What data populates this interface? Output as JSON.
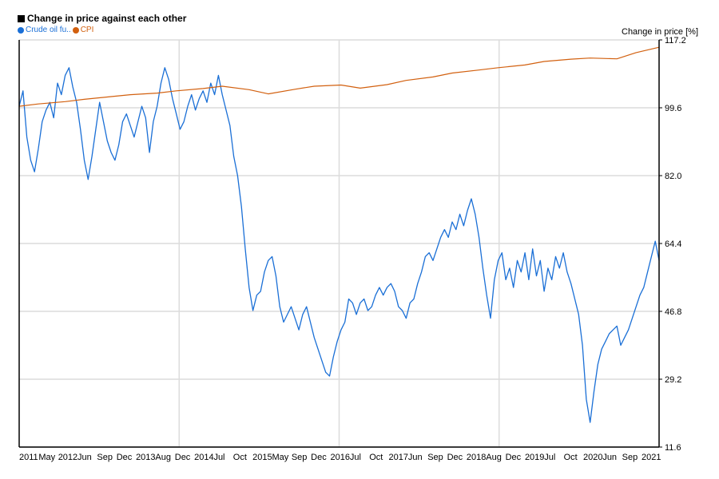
{
  "chart_data": {
    "type": "line",
    "title": "Change in price against each other",
    "ylabel": "Change in price [%]",
    "ylim": [
      11.6,
      117.2
    ],
    "yticks": [
      "117.2",
      "99.6",
      "82.0",
      "64.4",
      "46.8",
      "29.2",
      "11.6"
    ],
    "xticks": [
      "2011",
      "May",
      "2012",
      "Jun",
      "Sep",
      "Dec",
      "2013",
      "Aug",
      "Dec",
      "2014",
      "Jul",
      "Oct",
      "2015",
      "May",
      "Sep",
      "Dec",
      "2016",
      "Jul",
      "Oct",
      "2017",
      "Jun",
      "Sep",
      "Dec",
      "2018",
      "Aug",
      "Dec",
      "2019",
      "Jul",
      "Oct",
      "2020",
      "Jun",
      "Sep",
      "2021"
    ],
    "x_start": "2011-01",
    "x_end": "2021-07",
    "grid": true,
    "legend_position": "top-left",
    "series": [
      {
        "name": "Crude oil fu..",
        "color": "#1a6fd6",
        "points": [
          [
            "2011-01",
            100
          ],
          [
            "2011-02",
            104
          ],
          [
            "2011-03",
            92
          ],
          [
            "2011-04",
            86
          ],
          [
            "2011-05",
            83
          ],
          [
            "2011-06",
            89
          ],
          [
            "2011-07",
            96
          ],
          [
            "2011-08",
            99
          ],
          [
            "2011-09",
            101
          ],
          [
            "2011-10",
            97
          ],
          [
            "2011-11",
            106
          ],
          [
            "2011-12",
            103
          ],
          [
            "2012-01",
            108
          ],
          [
            "2012-02",
            110
          ],
          [
            "2012-03",
            105
          ],
          [
            "2012-04",
            101
          ],
          [
            "2012-05",
            94
          ],
          [
            "2012-06",
            86
          ],
          [
            "2012-07",
            81
          ],
          [
            "2012-08",
            87
          ],
          [
            "2012-09",
            94
          ],
          [
            "2012-10",
            101
          ],
          [
            "2012-11",
            96
          ],
          [
            "2012-12",
            91
          ],
          [
            "2013-01",
            88
          ],
          [
            "2013-02",
            86
          ],
          [
            "2013-03",
            90
          ],
          [
            "2013-04",
            96
          ],
          [
            "2013-05",
            98
          ],
          [
            "2013-06",
            95
          ],
          [
            "2013-07",
            92
          ],
          [
            "2013-08",
            96
          ],
          [
            "2013-09",
            100
          ],
          [
            "2013-10",
            97
          ],
          [
            "2013-11",
            88
          ],
          [
            "2013-12",
            96
          ],
          [
            "2014-01",
            100
          ],
          [
            "2014-02",
            106
          ],
          [
            "2014-03",
            110
          ],
          [
            "2014-04",
            107
          ],
          [
            "2014-05",
            102
          ],
          [
            "2014-06",
            98
          ],
          [
            "2014-07",
            94
          ],
          [
            "2014-08",
            96
          ],
          [
            "2014-09",
            100
          ],
          [
            "2014-10",
            103
          ],
          [
            "2014-11",
            99
          ],
          [
            "2014-12",
            102
          ],
          [
            "2015-01",
            104
          ],
          [
            "2015-02",
            101
          ],
          [
            "2015-03",
            106
          ],
          [
            "2015-04",
            103
          ],
          [
            "2015-05",
            108
          ],
          [
            "2015-06",
            103
          ],
          [
            "2015-07",
            99
          ],
          [
            "2015-08",
            95
          ],
          [
            "2015-09",
            87
          ],
          [
            "2015-10",
            82
          ],
          [
            "2015-11",
            74
          ],
          [
            "2015-12",
            63
          ],
          [
            "2016-01",
            53
          ],
          [
            "2016-02",
            47
          ],
          [
            "2016-03",
            51
          ],
          [
            "2016-04",
            52
          ],
          [
            "2016-05",
            57
          ],
          [
            "2016-06",
            60
          ],
          [
            "2016-07",
            61
          ],
          [
            "2016-08",
            56
          ],
          [
            "2016-09",
            48
          ],
          [
            "2016-10",
            44
          ],
          [
            "2016-11",
            46
          ],
          [
            "2016-12",
            48
          ],
          [
            "2017-01",
            45
          ],
          [
            "2017-02",
            42
          ],
          [
            "2017-03",
            46
          ],
          [
            "2017-04",
            48
          ],
          [
            "2017-05",
            44
          ],
          [
            "2017-06",
            40
          ],
          [
            "2017-07",
            37
          ],
          [
            "2017-08",
            34
          ],
          [
            "2017-09",
            31
          ],
          [
            "2017-10",
            30
          ],
          [
            "2017-11",
            35
          ],
          [
            "2017-12",
            39
          ],
          [
            "2018-01",
            42
          ],
          [
            "2018-02",
            44
          ],
          [
            "2018-03",
            50
          ],
          [
            "2018-04",
            49
          ],
          [
            "2018-05",
            46
          ],
          [
            "2018-06",
            49
          ],
          [
            "2018-07",
            50
          ],
          [
            "2018-08",
            47
          ],
          [
            "2018-09",
            48
          ],
          [
            "2018-10",
            51
          ],
          [
            "2018-11",
            53
          ],
          [
            "2018-12",
            51
          ],
          [
            "2019-01",
            53
          ],
          [
            "2019-02",
            54
          ],
          [
            "2019-03",
            52
          ],
          [
            "2019-04",
            48
          ],
          [
            "2019-05",
            47
          ],
          [
            "2019-06",
            45
          ],
          [
            "2019-07",
            49
          ],
          [
            "2019-08",
            50
          ],
          [
            "2019-09",
            54
          ],
          [
            "2019-10",
            57
          ],
          [
            "2019-11",
            61
          ],
          [
            "2019-12",
            62
          ],
          [
            "2020-01",
            60
          ],
          [
            "2020-02",
            63
          ],
          [
            "2020-03",
            66
          ],
          [
            "2020-04",
            68
          ],
          [
            "2020-05",
            66
          ],
          [
            "2020-06",
            70
          ],
          [
            "2020-07",
            68
          ],
          [
            "2020-08",
            72
          ],
          [
            "2020-09",
            69
          ],
          [
            "2020-10",
            73
          ],
          [
            "2020-11",
            76
          ],
          [
            "2020-12",
            72
          ],
          [
            "2021-01",
            66
          ],
          [
            "2021-02",
            58
          ],
          [
            "2021-03",
            51
          ],
          [
            "2021-04",
            45
          ],
          [
            "2021-05",
            55
          ],
          [
            "2021-06",
            60
          ],
          [
            "2021-07",
            62
          ],
          [
            "2021-08",
            55
          ],
          [
            "2021-09",
            58
          ],
          [
            "2021-10",
            53
          ],
          [
            "2021-11",
            60
          ],
          [
            "2021-12",
            57
          ],
          [
            "2022-01",
            62
          ],
          [
            "2022-02",
            55
          ],
          [
            "2022-03",
            63
          ],
          [
            "2022-04",
            56
          ],
          [
            "2022-05",
            60
          ],
          [
            "2022-06",
            52
          ],
          [
            "2022-07",
            58
          ],
          [
            "2022-08",
            55
          ],
          [
            "2022-09",
            61
          ],
          [
            "2022-10",
            58
          ],
          [
            "2022-11",
            62
          ],
          [
            "2022-12",
            57
          ],
          [
            "2023-01",
            54
          ],
          [
            "2023-02",
            50
          ],
          [
            "2023-03",
            46
          ],
          [
            "2023-04",
            38
          ],
          [
            "2023-05",
            24
          ],
          [
            "2023-06",
            18
          ],
          [
            "2023-07",
            26
          ],
          [
            "2023-08",
            33
          ],
          [
            "2023-09",
            37
          ],
          [
            "2023-10",
            39
          ],
          [
            "2023-11",
            41
          ],
          [
            "2023-12",
            42
          ],
          [
            "2024-01",
            43
          ],
          [
            "2024-02",
            38
          ],
          [
            "2024-03",
            40
          ],
          [
            "2024-04",
            42
          ],
          [
            "2024-05",
            45
          ],
          [
            "2024-06",
            48
          ],
          [
            "2024-07",
            51
          ],
          [
            "2024-08",
            53
          ],
          [
            "2024-09",
            57
          ],
          [
            "2024-10",
            61
          ],
          [
            "2024-11",
            65
          ],
          [
            "2024-12",
            60
          ]
        ]
      },
      {
        "name": "CPI",
        "color": "#d2600f",
        "points": [
          [
            "2011-01",
            100.0
          ],
          [
            "2011-06",
            100.6
          ],
          [
            "2012-01",
            101.2
          ],
          [
            "2012-06",
            101.8
          ],
          [
            "2013-01",
            102.5
          ],
          [
            "2013-06",
            103.0
          ],
          [
            "2014-01",
            103.4
          ],
          [
            "2014-06",
            104.0
          ],
          [
            "2015-01",
            104.6
          ],
          [
            "2015-06",
            105.2
          ],
          [
            "2016-01",
            104.3
          ],
          [
            "2016-06",
            103.2
          ],
          [
            "2017-01",
            104.4
          ],
          [
            "2017-06",
            105.2
          ],
          [
            "2018-01",
            105.5
          ],
          [
            "2018-06",
            104.7
          ],
          [
            "2019-01",
            105.6
          ],
          [
            "2019-06",
            106.7
          ],
          [
            "2020-01",
            107.6
          ],
          [
            "2020-06",
            108.6
          ],
          [
            "2021-01",
            109.4
          ],
          [
            "2021-06",
            110.0
          ],
          [
            "2022-01",
            110.7
          ],
          [
            "2022-06",
            111.6
          ],
          [
            "2023-01",
            112.2
          ],
          [
            "2023-06",
            112.5
          ],
          [
            "2024-01",
            112.3
          ],
          [
            "2024-06",
            113.9
          ],
          [
            "2024-12",
            115.3
          ]
        ]
      }
    ]
  }
}
